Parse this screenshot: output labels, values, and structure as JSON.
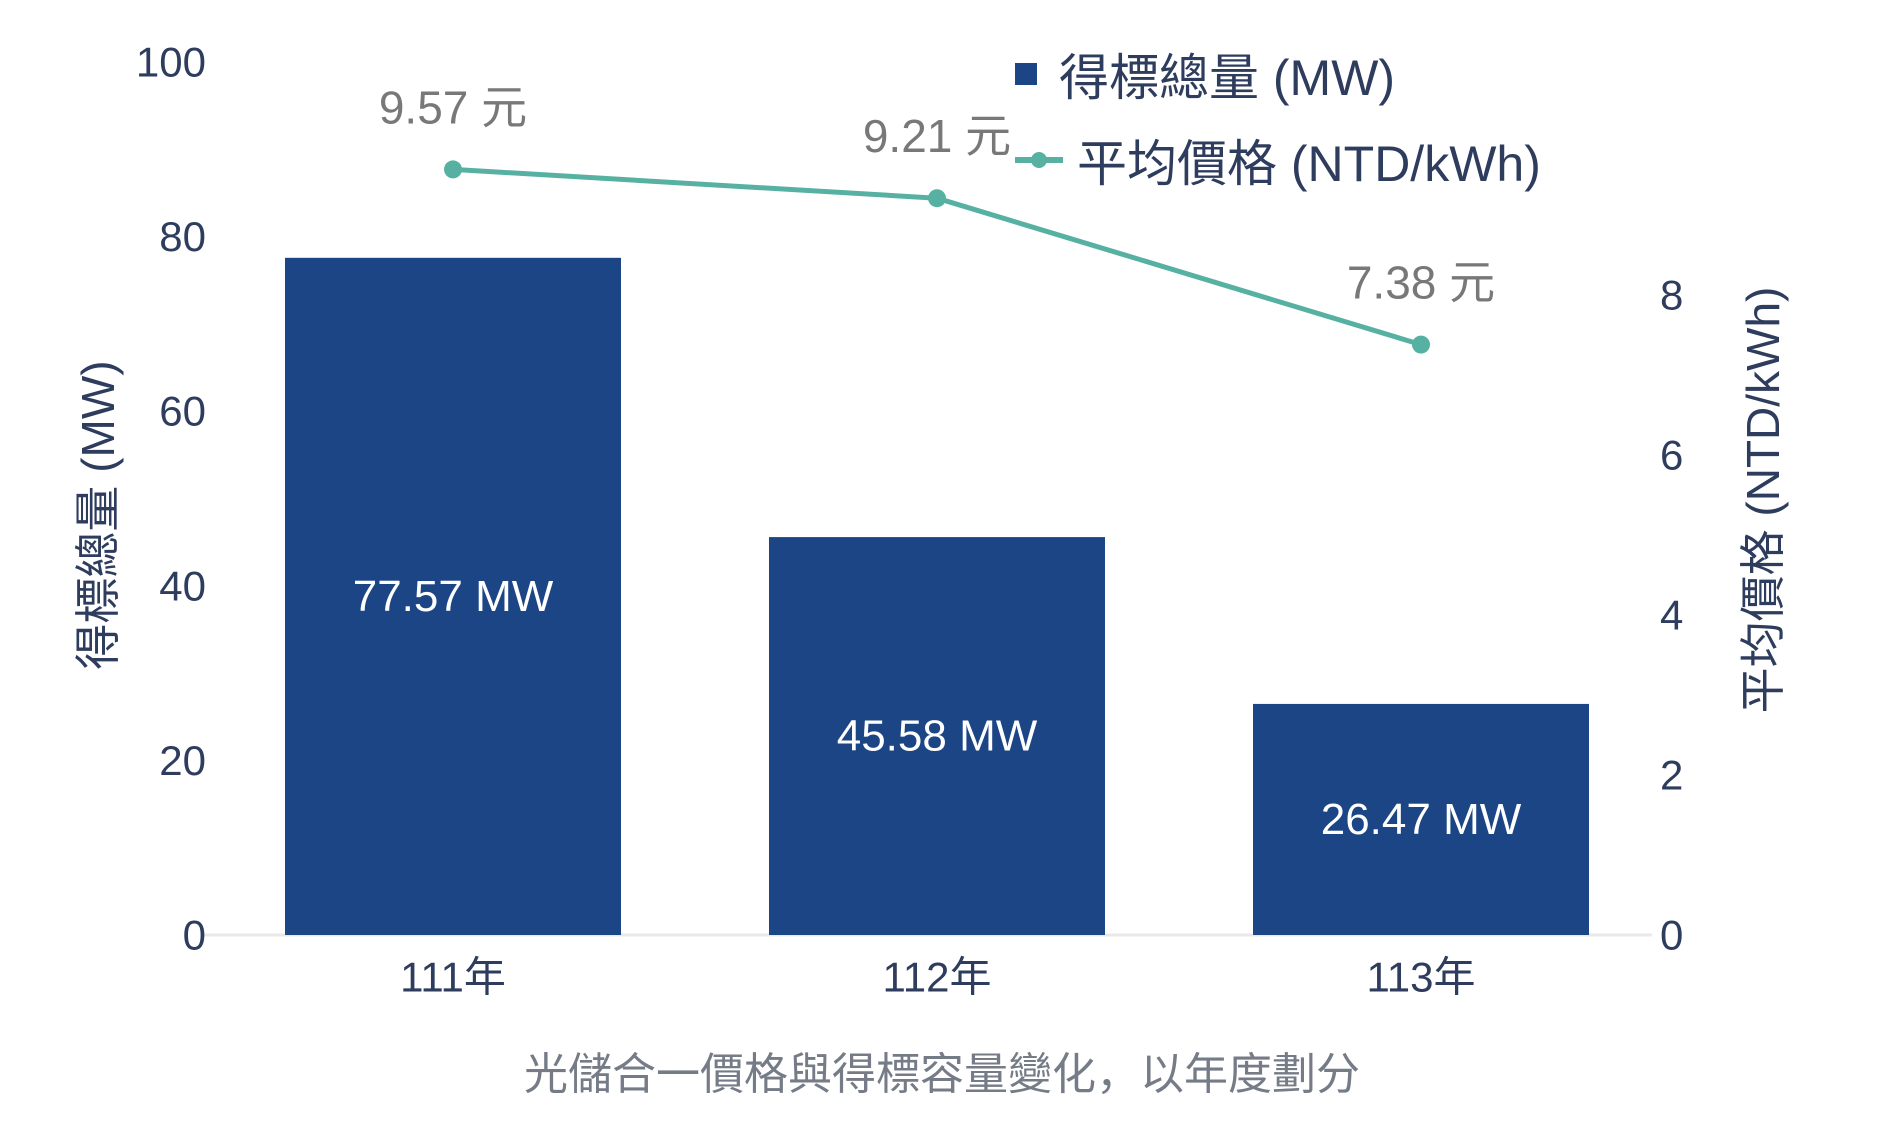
{
  "chart_data": {
    "type": "bar+line combo",
    "categories": [
      "111年",
      "112年",
      "113年"
    ],
    "series": [
      {
        "name": "得標總量 (MW)",
        "type": "bar",
        "axis": "left",
        "values": [
          77.57,
          45.58,
          26.47
        ],
        "labels": [
          "77.57 MW",
          "45.58 MW",
          "26.47 MW"
        ],
        "color": "#1c4586"
      },
      {
        "name": "平均價格 (NTD/kWh)",
        "type": "line",
        "axis": "right",
        "values": [
          9.57,
          9.21,
          7.38
        ],
        "labels": [
          "9.57 元",
          "9.21 元",
          "7.38 元"
        ],
        "color": "#57b1a2"
      }
    ],
    "left_axis": {
      "title": "得標總量 (MW)",
      "ticks": [
        0,
        20,
        40,
        60,
        80,
        100
      ],
      "range": [
        0,
        100
      ]
    },
    "right_axis": {
      "title": "平均價格 (NTD/kWh)",
      "ticks": [
        0,
        2,
        4,
        6,
        8
      ],
      "range": [
        0,
        11
      ]
    },
    "caption": "光儲合一價格與得標容量變化，以年度劃分",
    "legend_position": "top-right",
    "grid": "baseline-only"
  },
  "colors": {
    "bar": "#1c4586",
    "line": "#57b1a2",
    "axis_text": "#2e3c5e",
    "point_label_text": "#787878",
    "bar_label_text": "#ffffff",
    "caption_text": "#757c87",
    "baseline": "#e9e9e9",
    "background": "#ffffff"
  }
}
